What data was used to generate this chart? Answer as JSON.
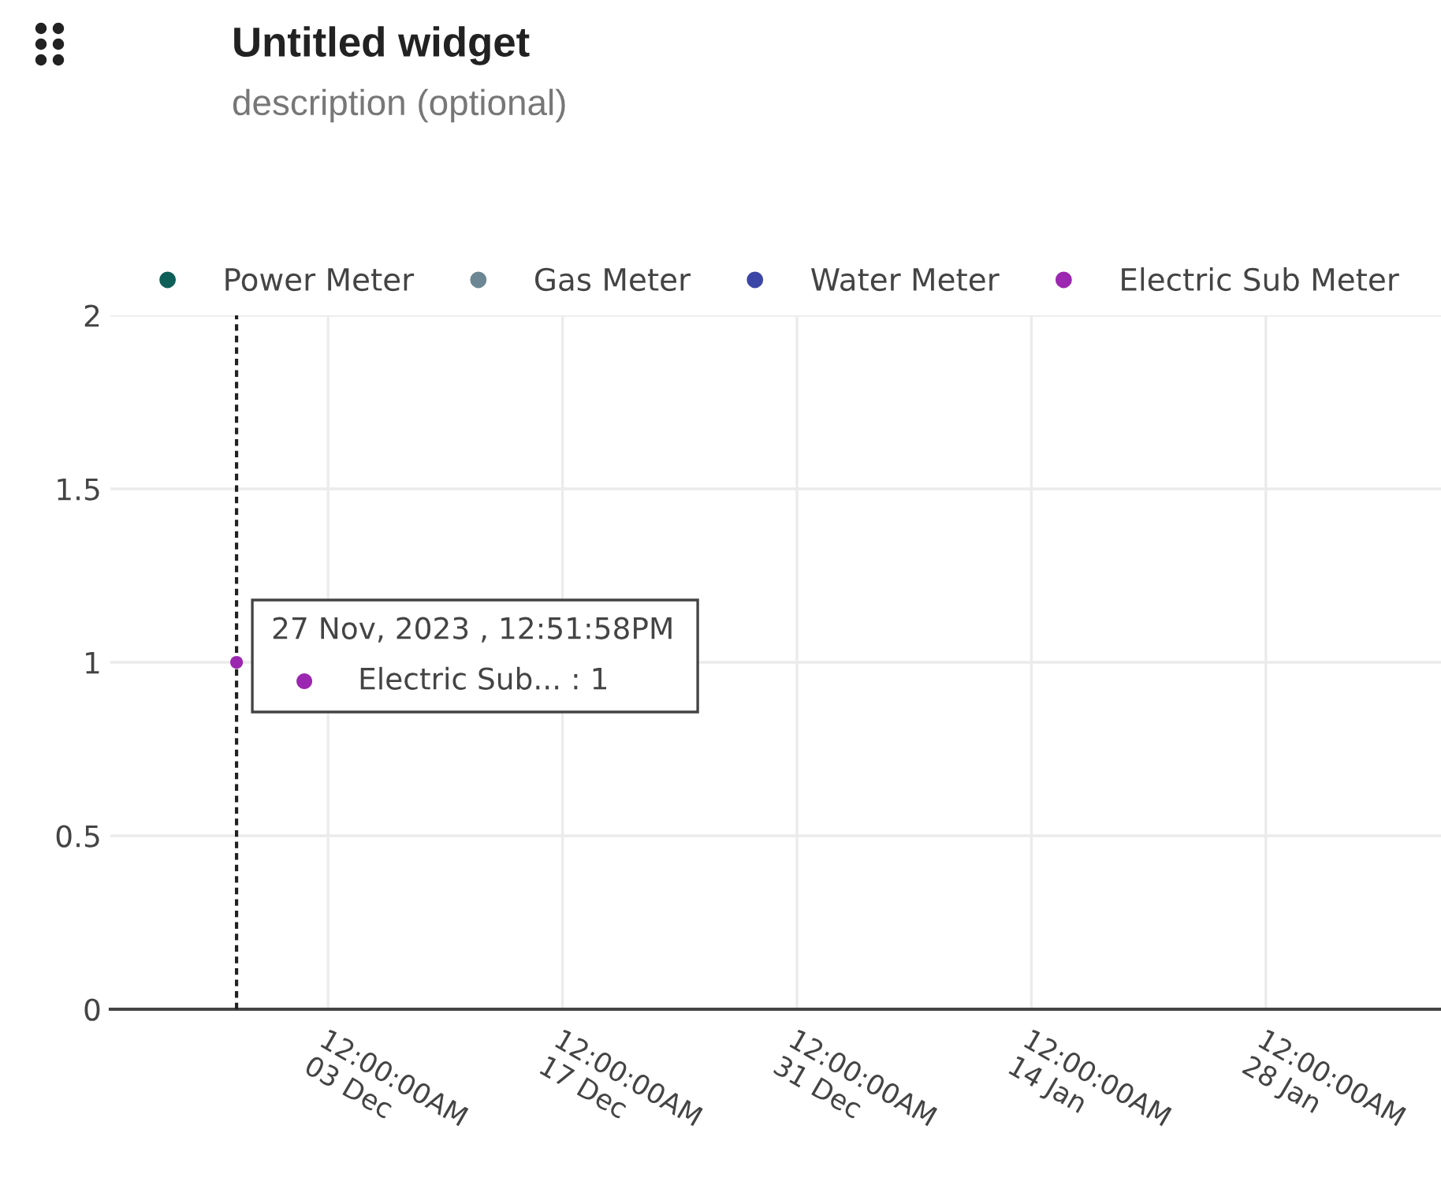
{
  "chart_data": {
    "type": "scatter",
    "title": "Untitled widget",
    "subtitle": "description (optional)",
    "series": [
      {
        "name": "Power Meter",
        "color": "#0f5f59"
      },
      {
        "name": "Gas Meter",
        "color": "#6c8793"
      },
      {
        "name": "Water Meter",
        "color": "#3b46a6"
      },
      {
        "name": "Electric Sub Meter",
        "color": "#9c27b0",
        "x": [
          "2023-11-27T12:51:58"
        ],
        "values": [
          1
        ]
      }
    ],
    "xlim": [
      "2023-11-20",
      "2024-02-07T11:00"
    ],
    "xticks": [
      {
        "value": "2023-12-03",
        "label": "12:00:00AM\n03 Dec"
      },
      {
        "value": "2023-12-17",
        "label": "12:00:00AM\n17 Dec"
      },
      {
        "value": "2023-12-31",
        "label": "12:00:00AM\n31 Dec"
      },
      {
        "value": "2024-01-14",
        "label": "12:00:00AM\n14 Jan"
      },
      {
        "value": "2024-01-28",
        "label": "12:00:00AM\n28 Jan"
      }
    ],
    "ylim": [
      0,
      2
    ],
    "yticks": [
      0,
      0.5,
      1,
      1.5,
      2
    ],
    "grid": true,
    "legend": "top",
    "marker": "circle",
    "ref_lines": [
      {
        "axis": "x",
        "value": "2023-11-27T12:51:58",
        "color": "#222222",
        "line_style": "dashed"
      }
    ],
    "annotations": [
      {
        "text": "27 Nov, 2023 , 12:51:58PM",
        "x": "2023-11-27T12:51:58",
        "y": 1
      },
      "Electric Sub... : 1"
    ]
  }
}
